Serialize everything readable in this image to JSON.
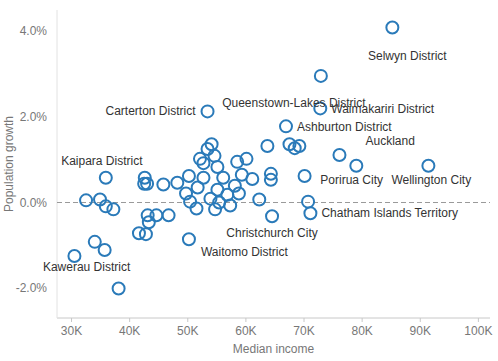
{
  "chart_data": {
    "type": "scatter",
    "x_label": "Median income",
    "y_label": "Population growth",
    "color": "#2a7ab9",
    "marker": "circle-open",
    "grid": false,
    "xlim": [
      27500,
      102000
    ],
    "ylim": [
      -2.7,
      4.5
    ],
    "xticks": [
      {
        "value": 30000,
        "label": "30K"
      },
      {
        "value": 40000,
        "label": "40K"
      },
      {
        "value": 50000,
        "label": "50K"
      },
      {
        "value": 60000,
        "label": "60K"
      },
      {
        "value": 70000,
        "label": "70K"
      },
      {
        "value": 80000,
        "label": "80K"
      },
      {
        "value": 90000,
        "label": "90K"
      },
      {
        "value": 100000,
        "label": "100K"
      }
    ],
    "yticks": [
      {
        "value": -2,
        "label": "-2.0%"
      },
      {
        "value": 0,
        "label": "0.0%"
      },
      {
        "value": 2,
        "label": "2.0%"
      },
      {
        "value": 4,
        "label": "4.0%"
      }
    ],
    "x": [
      85200,
      72900,
      72800,
      53400,
      66900,
      76100,
      79000,
      91400,
      35900,
      71100,
      64500,
      50200,
      38100,
      30500,
      32500,
      34900,
      35900,
      37200,
      34000,
      35700,
      41600,
      42800,
      43100,
      43300,
      42600,
      42500,
      43000,
      44600,
      46700,
      45800,
      48200,
      49700,
      50200,
      50400,
      51500,
      51700,
      52700,
      52700,
      52100,
      53400,
      54100,
      54600,
      55100,
      55400,
      54700,
      53900,
      55100,
      56100,
      56800,
      57300,
      58100,
      58800,
      59300,
      58500,
      60100,
      61100,
      62300,
      63700,
      64300,
      64300,
      67500,
      68400,
      70100,
      70700,
      69200
    ],
    "values": [
      4.09,
      2.96,
      2.2,
      2.13,
      1.78,
      1.11,
      0.86,
      0.86,
      0.58,
      -0.25,
      -0.32,
      -0.86,
      -2.01,
      -1.25,
      0.05,
      0.07,
      -0.09,
      -0.16,
      -0.92,
      -1.11,
      -0.72,
      -0.74,
      -0.3,
      -0.46,
      0.58,
      0.44,
      0.44,
      -0.3,
      -0.3,
      0.42,
      0.46,
      0.21,
      0.62,
      0.02,
      -0.14,
      0.35,
      0.58,
      0.92,
      1.02,
      1.25,
      1.36,
      1.09,
      0.3,
      0.0,
      -0.16,
      0.09,
      0.83,
      0.58,
      0.18,
      -0.07,
      0.39,
      0.21,
      0.65,
      0.95,
      1.02,
      0.55,
      0.07,
      1.32,
      0.53,
      0.67,
      1.36,
      1.27,
      0.62,
      0.02,
      1.32
    ],
    "point_labels": [
      "Selwyn District",
      "Queenstown-Lakes District",
      "Waimakariri District",
      "Carterton District",
      "Ashburton District",
      "Auckland",
      "Porirua City",
      "Wellington City",
      "Kaipara District",
      "Chatham Islands Territory",
      "Christchurch City",
      "Waitomo District",
      "Kawerau District",
      null,
      null,
      null,
      null,
      null,
      null,
      null,
      null,
      null,
      null,
      null,
      null,
      null,
      null,
      null,
      null,
      null,
      null,
      null,
      null,
      null,
      null,
      null,
      null,
      null,
      null,
      null,
      null,
      null,
      null,
      null,
      null,
      null,
      null,
      null,
      null,
      null,
      null,
      null,
      null,
      null,
      null,
      null,
      null,
      null,
      null,
      null,
      null,
      null,
      null,
      null,
      null
    ]
  }
}
